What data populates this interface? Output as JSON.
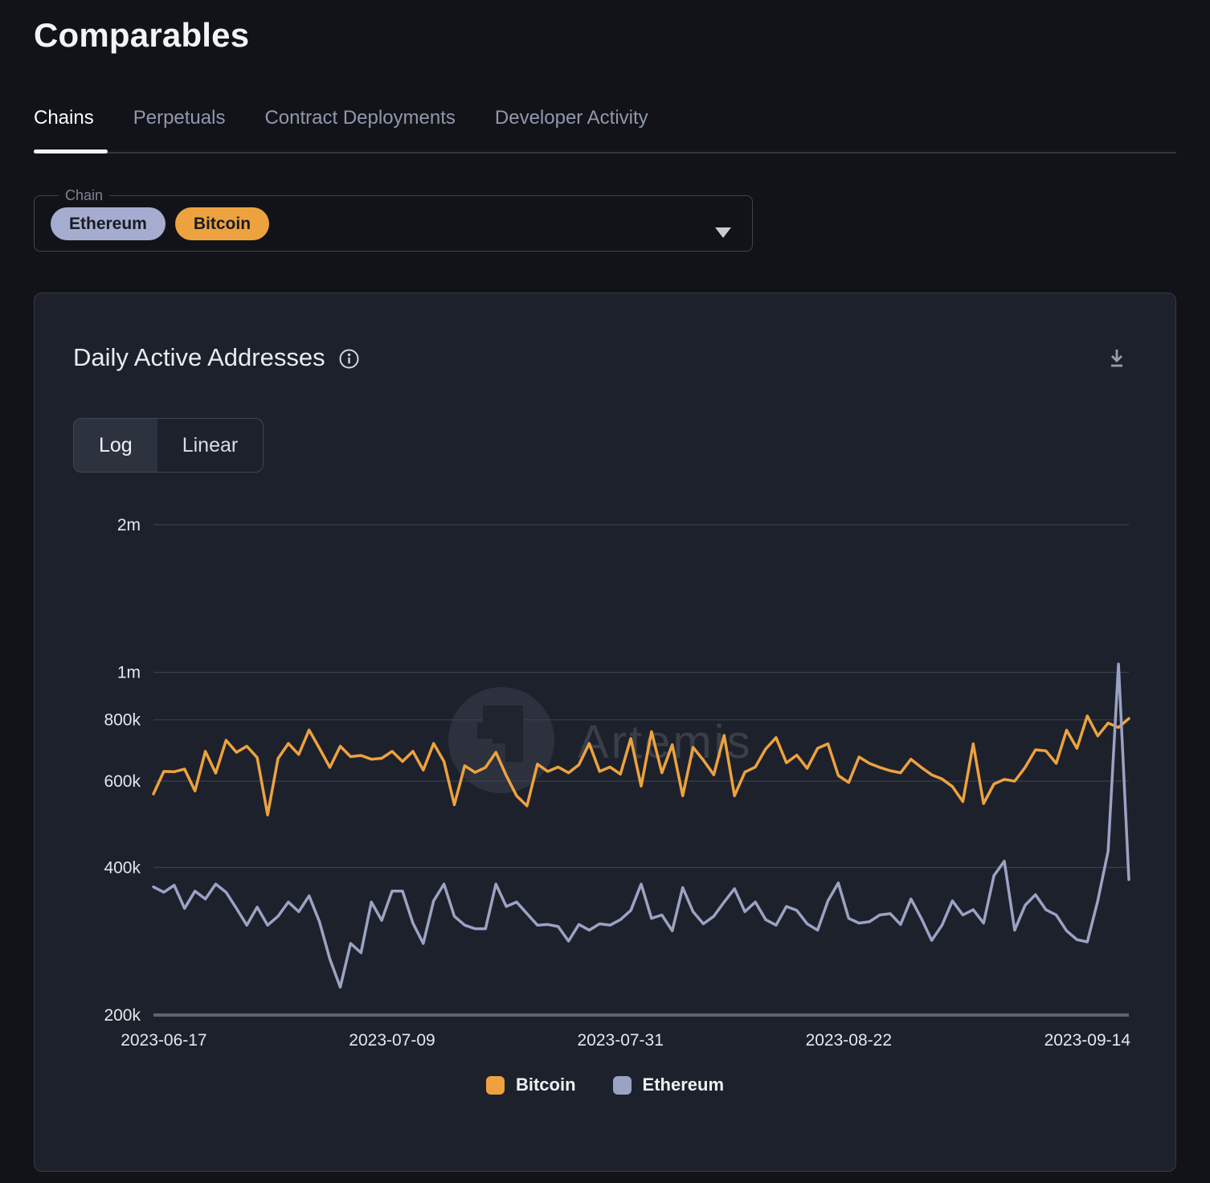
{
  "page": {
    "title": "Comparables"
  },
  "tabs": [
    {
      "label": "Chains",
      "active": true
    },
    {
      "label": "Perpetuals",
      "active": false
    },
    {
      "label": "Contract Deployments",
      "active": false
    },
    {
      "label": "Developer Activity",
      "active": false
    }
  ],
  "chain_selector": {
    "label": "Chain",
    "selected_chips": [
      {
        "label": "Ethereum",
        "color": "#a6abd0"
      },
      {
        "label": "Bitcoin",
        "color": "#eda23f"
      }
    ]
  },
  "card": {
    "title": "Daily Active Addresses",
    "watermark": "Artemis",
    "scale_toggle": {
      "options": [
        "Log",
        "Linear"
      ],
      "selected": "Log"
    }
  },
  "chart_data": {
    "type": "line",
    "title": "Daily Active Addresses",
    "y_scale": "log",
    "ylim": [
      200000,
      2000000
    ],
    "grid": true,
    "legend_position": "bottom",
    "y_ticks": [
      {
        "label": "2m",
        "value": 2000000
      },
      {
        "label": "1m",
        "value": 1000000
      },
      {
        "label": "800k",
        "value": 800000
      },
      {
        "label": "600k",
        "value": 600000
      },
      {
        "label": "400k",
        "value": 400000
      },
      {
        "label": "200k",
        "value": 200000
      }
    ],
    "x_tick_labels": [
      "2023-06-17",
      "2023-07-09",
      "2023-07-31",
      "2023-08-22",
      "2023-09-14"
    ],
    "x": [
      "2023-06-16",
      "2023-06-17",
      "2023-06-18",
      "2023-06-19",
      "2023-06-20",
      "2023-06-21",
      "2023-06-22",
      "2023-06-23",
      "2023-06-24",
      "2023-06-25",
      "2023-06-26",
      "2023-06-27",
      "2023-06-28",
      "2023-06-29",
      "2023-06-30",
      "2023-07-01",
      "2023-07-02",
      "2023-07-03",
      "2023-07-04",
      "2023-07-05",
      "2023-07-06",
      "2023-07-07",
      "2023-07-08",
      "2023-07-09",
      "2023-07-10",
      "2023-07-11",
      "2023-07-12",
      "2023-07-13",
      "2023-07-14",
      "2023-07-15",
      "2023-07-16",
      "2023-07-17",
      "2023-07-18",
      "2023-07-19",
      "2023-07-20",
      "2023-07-21",
      "2023-07-22",
      "2023-07-23",
      "2023-07-24",
      "2023-07-25",
      "2023-07-26",
      "2023-07-27",
      "2023-07-28",
      "2023-07-29",
      "2023-07-30",
      "2023-07-31",
      "2023-08-01",
      "2023-08-02",
      "2023-08-03",
      "2023-08-04",
      "2023-08-05",
      "2023-08-06",
      "2023-08-07",
      "2023-08-08",
      "2023-08-09",
      "2023-08-10",
      "2023-08-11",
      "2023-08-12",
      "2023-08-13",
      "2023-08-14",
      "2023-08-15",
      "2023-08-16",
      "2023-08-17",
      "2023-08-18",
      "2023-08-19",
      "2023-08-20",
      "2023-08-21",
      "2023-08-22",
      "2023-08-23",
      "2023-08-24",
      "2023-08-25",
      "2023-08-26",
      "2023-08-27",
      "2023-08-28",
      "2023-08-29",
      "2023-08-30",
      "2023-08-31",
      "2023-09-01",
      "2023-09-02",
      "2023-09-03",
      "2023-09-04",
      "2023-09-05",
      "2023-09-06",
      "2023-09-07",
      "2023-09-08",
      "2023-09-09",
      "2023-09-10",
      "2023-09-11",
      "2023-09-12",
      "2023-09-13",
      "2023-09-14",
      "2023-09-15",
      "2023-09-16",
      "2023-09-17",
      "2023-09-18"
    ],
    "series": [
      {
        "name": "Bitcoin",
        "color": "#eda23f",
        "values": [
          565000,
          628000,
          627000,
          635000,
          573000,
          690000,
          623000,
          727000,
          687000,
          707000,
          670000,
          512000,
          667000,
          716000,
          680000,
          763000,
          700000,
          640000,
          707000,
          673000,
          677000,
          665000,
          668000,
          690000,
          658000,
          690000,
          632000,
          716000,
          658000,
          537000,
          645000,
          625000,
          640000,
          687000,
          616000,
          560000,
          534000,
          650000,
          628000,
          641000,
          624000,
          648000,
          716000,
          628000,
          641000,
          620000,
          733000,
          586000,
          757000,
          624000,
          712000,
          560000,
          703000,
          662000,
          618000,
          744000,
          560000,
          626000,
          641000,
          698000,
          736000,
          654000,
          678000,
          637000,
          700000,
          715000,
          616000,
          596000,
          672000,
          652000,
          640000,
          630000,
          624000,
          665000,
          640000,
          618000,
          606000,
          585000,
          545000,
          715000,
          540000,
          592000,
          605000,
          600000,
          640000,
          695000,
          692000,
          652000,
          762000,
          700000,
          815000,
          742000,
          788000,
          772000,
          805000
        ]
      },
      {
        "name": "Ethereum",
        "color": "#9ba3c4",
        "values": [
          365000,
          356000,
          368000,
          330000,
          358000,
          345000,
          370000,
          356000,
          330000,
          305000,
          332000,
          305000,
          318000,
          340000,
          325000,
          350000,
          310000,
          260000,
          228000,
          280000,
          268000,
          340000,
          312000,
          358000,
          358000,
          308000,
          280000,
          342000,
          370000,
          318000,
          305000,
          300000,
          300000,
          370000,
          333000,
          340000,
          322000,
          305000,
          306000,
          303000,
          283000,
          306000,
          298000,
          307000,
          305000,
          313000,
          327000,
          370000,
          315000,
          320000,
          297000,
          364000,
          325000,
          307000,
          318000,
          340000,
          362000,
          325000,
          340000,
          313000,
          305000,
          333000,
          327000,
          307000,
          298000,
          342000,
          372000,
          315000,
          308000,
          310000,
          320000,
          322000,
          306000,
          345000,
          315000,
          284000,
          305000,
          342000,
          320000,
          328000,
          308000,
          385000,
          412000,
          298000,
          335000,
          352000,
          328000,
          320000,
          297000,
          285000,
          282000,
          342000,
          432000,
          1040000,
          378000
        ]
      }
    ]
  }
}
